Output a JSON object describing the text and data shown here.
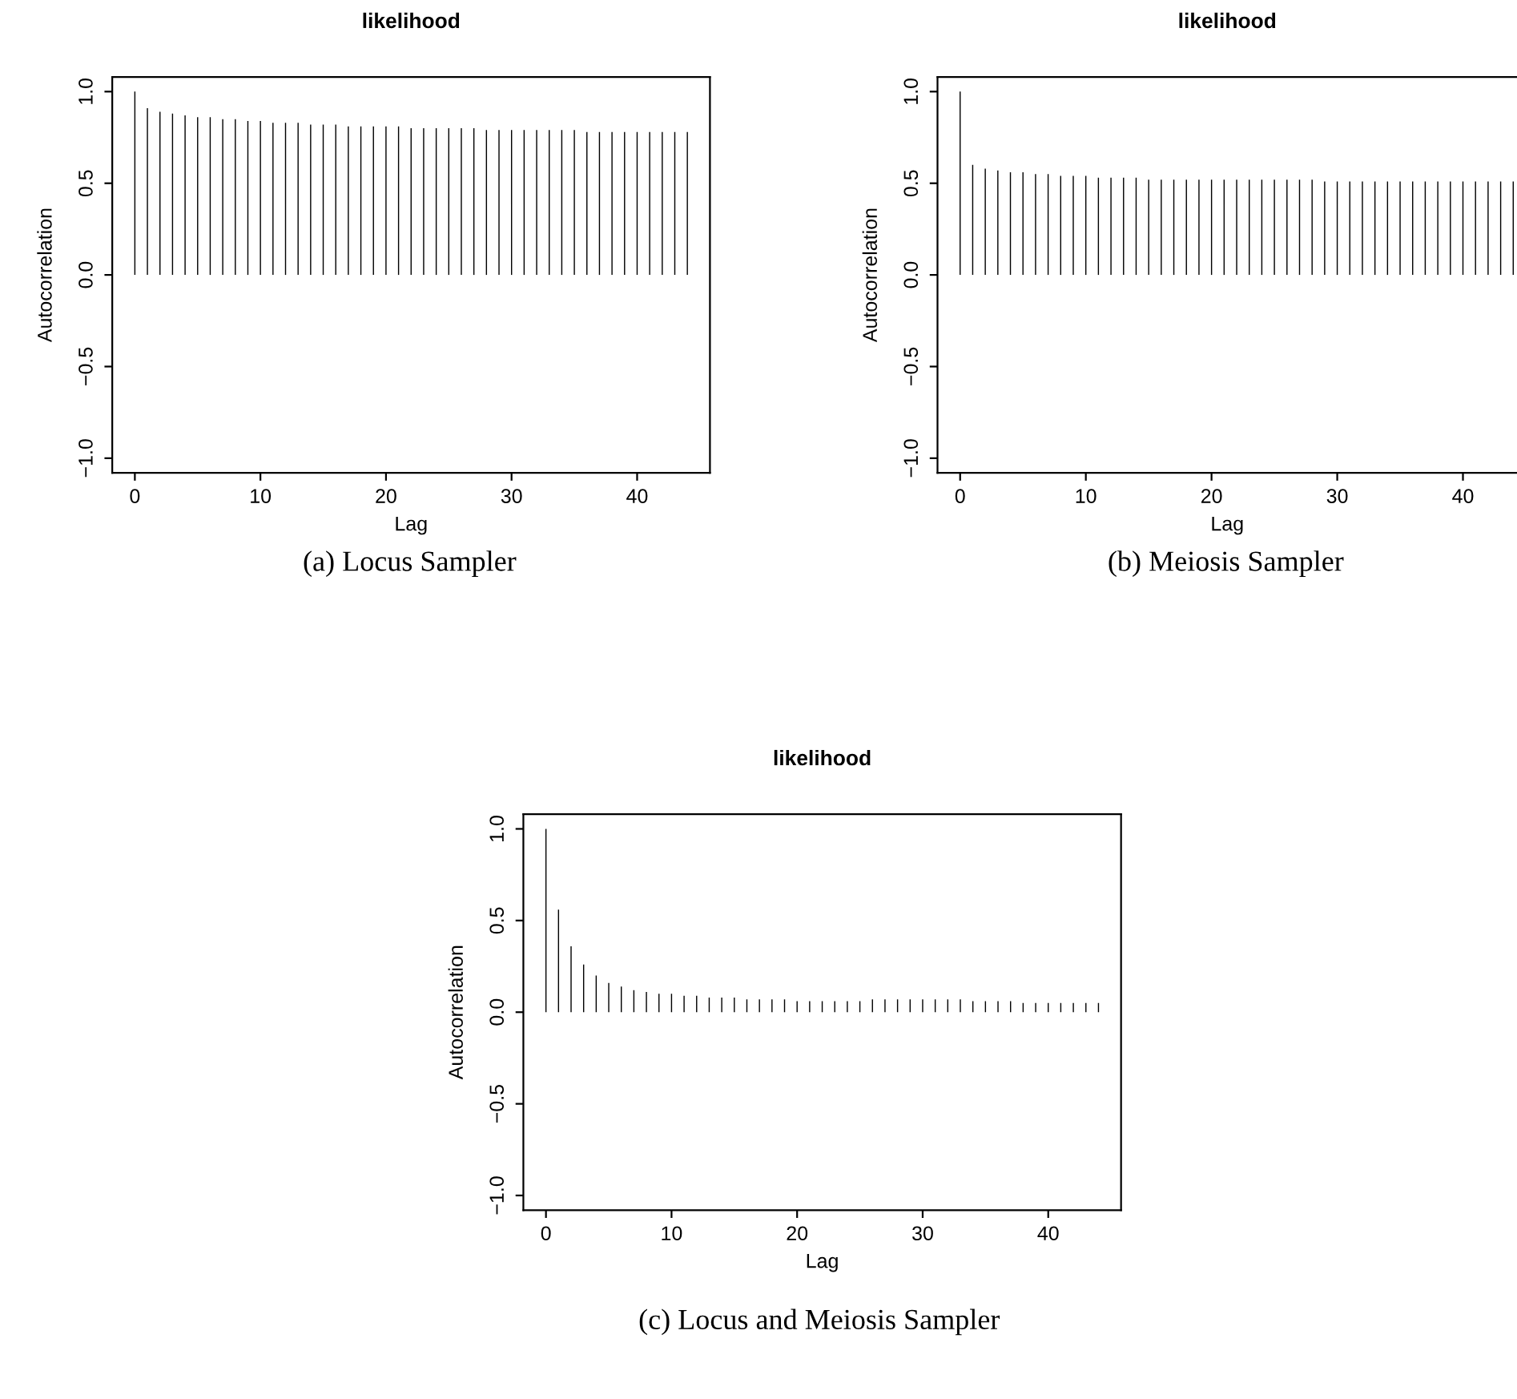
{
  "chart_data": [
    {
      "type": "bar",
      "title": "likelihood",
      "xlabel": "Lag",
      "ylabel": "Autocorrelation",
      "color": "#000000",
      "annotations": [
        "(a) Locus Sampler"
      ],
      "x": [
        0,
        1,
        2,
        3,
        4,
        5,
        6,
        7,
        8,
        9,
        10,
        11,
        12,
        13,
        14,
        15,
        16,
        17,
        18,
        19,
        20,
        21,
        22,
        23,
        24,
        25,
        26,
        27,
        28,
        29,
        30,
        31,
        32,
        33,
        34,
        35,
        36,
        37,
        38,
        39,
        40,
        41,
        42,
        43,
        44
      ],
      "values": [
        1.0,
        0.91,
        0.89,
        0.88,
        0.87,
        0.86,
        0.86,
        0.85,
        0.85,
        0.84,
        0.84,
        0.83,
        0.83,
        0.83,
        0.82,
        0.82,
        0.82,
        0.81,
        0.81,
        0.81,
        0.81,
        0.81,
        0.8,
        0.8,
        0.8,
        0.8,
        0.8,
        0.8,
        0.79,
        0.79,
        0.79,
        0.79,
        0.79,
        0.79,
        0.79,
        0.79,
        0.78,
        0.78,
        0.78,
        0.78,
        0.78,
        0.78,
        0.78,
        0.78,
        0.78
      ],
      "xlim": [
        -1.8,
        45.8
      ],
      "xticks": [
        0,
        10,
        20,
        30,
        40
      ],
      "ylim": [
        -1.08,
        1.08
      ],
      "yticks": [
        {
          "value": -1.0,
          "label": "−1.0"
        },
        {
          "value": -0.5,
          "label": "−0.5"
        },
        {
          "value": 0.0,
          "label": "0.0"
        },
        {
          "value": 0.5,
          "label": "0.5"
        },
        {
          "value": 1.0,
          "label": "1.0"
        }
      ],
      "grid": false,
      "legend": false
    },
    {
      "type": "bar",
      "title": "likelihood",
      "xlabel": "Lag",
      "ylabel": "Autocorrelation",
      "color": "#000000",
      "annotations": [
        "(b) Meiosis Sampler"
      ],
      "x": [
        0,
        1,
        2,
        3,
        4,
        5,
        6,
        7,
        8,
        9,
        10,
        11,
        12,
        13,
        14,
        15,
        16,
        17,
        18,
        19,
        20,
        21,
        22,
        23,
        24,
        25,
        26,
        27,
        28,
        29,
        30,
        31,
        32,
        33,
        34,
        35,
        36,
        37,
        38,
        39,
        40,
        41,
        42,
        43,
        44
      ],
      "values": [
        1.0,
        0.6,
        0.58,
        0.57,
        0.56,
        0.56,
        0.55,
        0.55,
        0.54,
        0.54,
        0.54,
        0.53,
        0.53,
        0.53,
        0.53,
        0.52,
        0.52,
        0.52,
        0.52,
        0.52,
        0.52,
        0.52,
        0.52,
        0.52,
        0.52,
        0.52,
        0.52,
        0.52,
        0.52,
        0.51,
        0.51,
        0.51,
        0.51,
        0.51,
        0.51,
        0.51,
        0.51,
        0.51,
        0.51,
        0.51,
        0.51,
        0.51,
        0.51,
        0.51,
        0.51
      ],
      "xlim": [
        -1.8,
        44.3
      ],
      "xticks": [
        0,
        10,
        20,
        30,
        40
      ],
      "ylim": [
        -1.08,
        1.08
      ],
      "yticks": [
        {
          "value": -1.0,
          "label": "−1.0"
        },
        {
          "value": -0.5,
          "label": "−0.5"
        },
        {
          "value": 0.0,
          "label": "0.0"
        },
        {
          "value": 0.5,
          "label": "0.5"
        },
        {
          "value": 1.0,
          "label": "1.0"
        }
      ],
      "grid": false,
      "legend": false
    },
    {
      "type": "bar",
      "title": "likelihood",
      "xlabel": "Lag",
      "ylabel": "Autocorrelation",
      "color": "#000000",
      "annotations": [
        "(c) Locus and Meiosis Sampler"
      ],
      "x": [
        0,
        1,
        2,
        3,
        4,
        5,
        6,
        7,
        8,
        9,
        10,
        11,
        12,
        13,
        14,
        15,
        16,
        17,
        18,
        19,
        20,
        21,
        22,
        23,
        24,
        25,
        26,
        27,
        28,
        29,
        30,
        31,
        32,
        33,
        34,
        35,
        36,
        37,
        38,
        39,
        40,
        41,
        42,
        43,
        44
      ],
      "values": [
        1.0,
        0.56,
        0.36,
        0.26,
        0.2,
        0.16,
        0.14,
        0.12,
        0.11,
        0.1,
        0.1,
        0.09,
        0.09,
        0.08,
        0.08,
        0.08,
        0.07,
        0.07,
        0.07,
        0.07,
        0.06,
        0.06,
        0.06,
        0.06,
        0.06,
        0.06,
        0.07,
        0.07,
        0.07,
        0.07,
        0.07,
        0.07,
        0.07,
        0.07,
        0.06,
        0.06,
        0.06,
        0.06,
        0.05,
        0.05,
        0.05,
        0.05,
        0.05,
        0.05,
        0.05
      ],
      "xlim": [
        -1.8,
        45.8
      ],
      "xticks": [
        0,
        10,
        20,
        30,
        40
      ],
      "ylim": [
        -1.08,
        1.08
      ],
      "yticks": [
        {
          "value": -1.0,
          "label": "−1.0"
        },
        {
          "value": -0.5,
          "label": "−0.5"
        },
        {
          "value": 0.0,
          "label": "0.0"
        },
        {
          "value": 0.5,
          "label": "0.5"
        },
        {
          "value": 1.0,
          "label": "1.0"
        }
      ],
      "grid": false,
      "legend": false
    }
  ]
}
